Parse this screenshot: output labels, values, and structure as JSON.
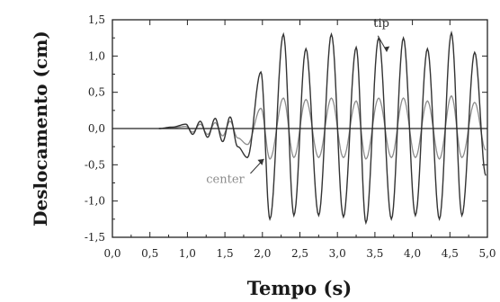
{
  "chart_data": {
    "type": "line",
    "title": "",
    "xlabel": "Tempo (s)",
    "ylabel": "Deslocamento (cm)",
    "xlim": [
      0.0,
      5.0
    ],
    "ylim": [
      -1.5,
      1.5
    ],
    "x_ticks": [
      "0,0",
      "0,5",
      "1,0",
      "1,5",
      "2,0",
      "2,5",
      "3,0",
      "3,5",
      "4,0",
      "4,5",
      "5,0"
    ],
    "y_ticks": [
      "1,5",
      "1,0",
      "0,5",
      "0,0",
      "-0,5",
      "-1,0",
      "-1,5"
    ],
    "grid": false,
    "colors": {
      "tip": "#333333",
      "center": "#8c8c8c",
      "axis": "#222222"
    },
    "series": [
      {
        "name": "tip",
        "x": [
          0.62,
          0.8,
          0.98,
          1.07,
          1.17,
          1.27,
          1.37,
          1.47,
          1.57,
          1.67,
          1.8,
          1.98,
          2.1,
          2.28,
          2.42,
          2.58,
          2.75,
          2.92,
          3.08,
          3.25,
          3.38,
          3.55,
          3.72,
          3.88,
          4.04,
          4.2,
          4.36,
          4.52,
          4.66,
          4.83,
          4.98
        ],
        "y": [
          0.0,
          0.02,
          0.06,
          -0.08,
          0.1,
          -0.12,
          0.14,
          -0.18,
          0.16,
          -0.25,
          -0.4,
          0.78,
          -1.25,
          1.3,
          -1.2,
          1.1,
          -1.2,
          1.3,
          -1.22,
          1.12,
          -1.3,
          1.25,
          -1.25,
          1.25,
          -1.2,
          1.1,
          -1.25,
          1.32,
          -1.2,
          1.05,
          -0.65
        ]
      },
      {
        "name": "center",
        "x": [
          0.62,
          0.8,
          0.98,
          1.07,
          1.17,
          1.27,
          1.37,
          1.47,
          1.57,
          1.67,
          1.8,
          1.98,
          2.1,
          2.28,
          2.42,
          2.58,
          2.75,
          2.92,
          3.08,
          3.25,
          3.38,
          3.55,
          3.72,
          3.88,
          4.04,
          4.2,
          4.36,
          4.52,
          4.66,
          4.83,
          4.98
        ],
        "y": [
          0.0,
          0.01,
          0.03,
          -0.05,
          0.06,
          -0.08,
          0.08,
          -0.1,
          0.1,
          -0.13,
          -0.22,
          0.28,
          -0.42,
          0.42,
          -0.4,
          0.4,
          -0.4,
          0.42,
          -0.4,
          0.38,
          -0.42,
          0.42,
          -0.4,
          0.42,
          -0.4,
          0.38,
          -0.42,
          0.45,
          -0.4,
          0.36,
          -0.3
        ]
      }
    ],
    "annotations": [
      {
        "text": "tip",
        "series": "tip"
      },
      {
        "text": "center",
        "series": "center"
      }
    ]
  }
}
